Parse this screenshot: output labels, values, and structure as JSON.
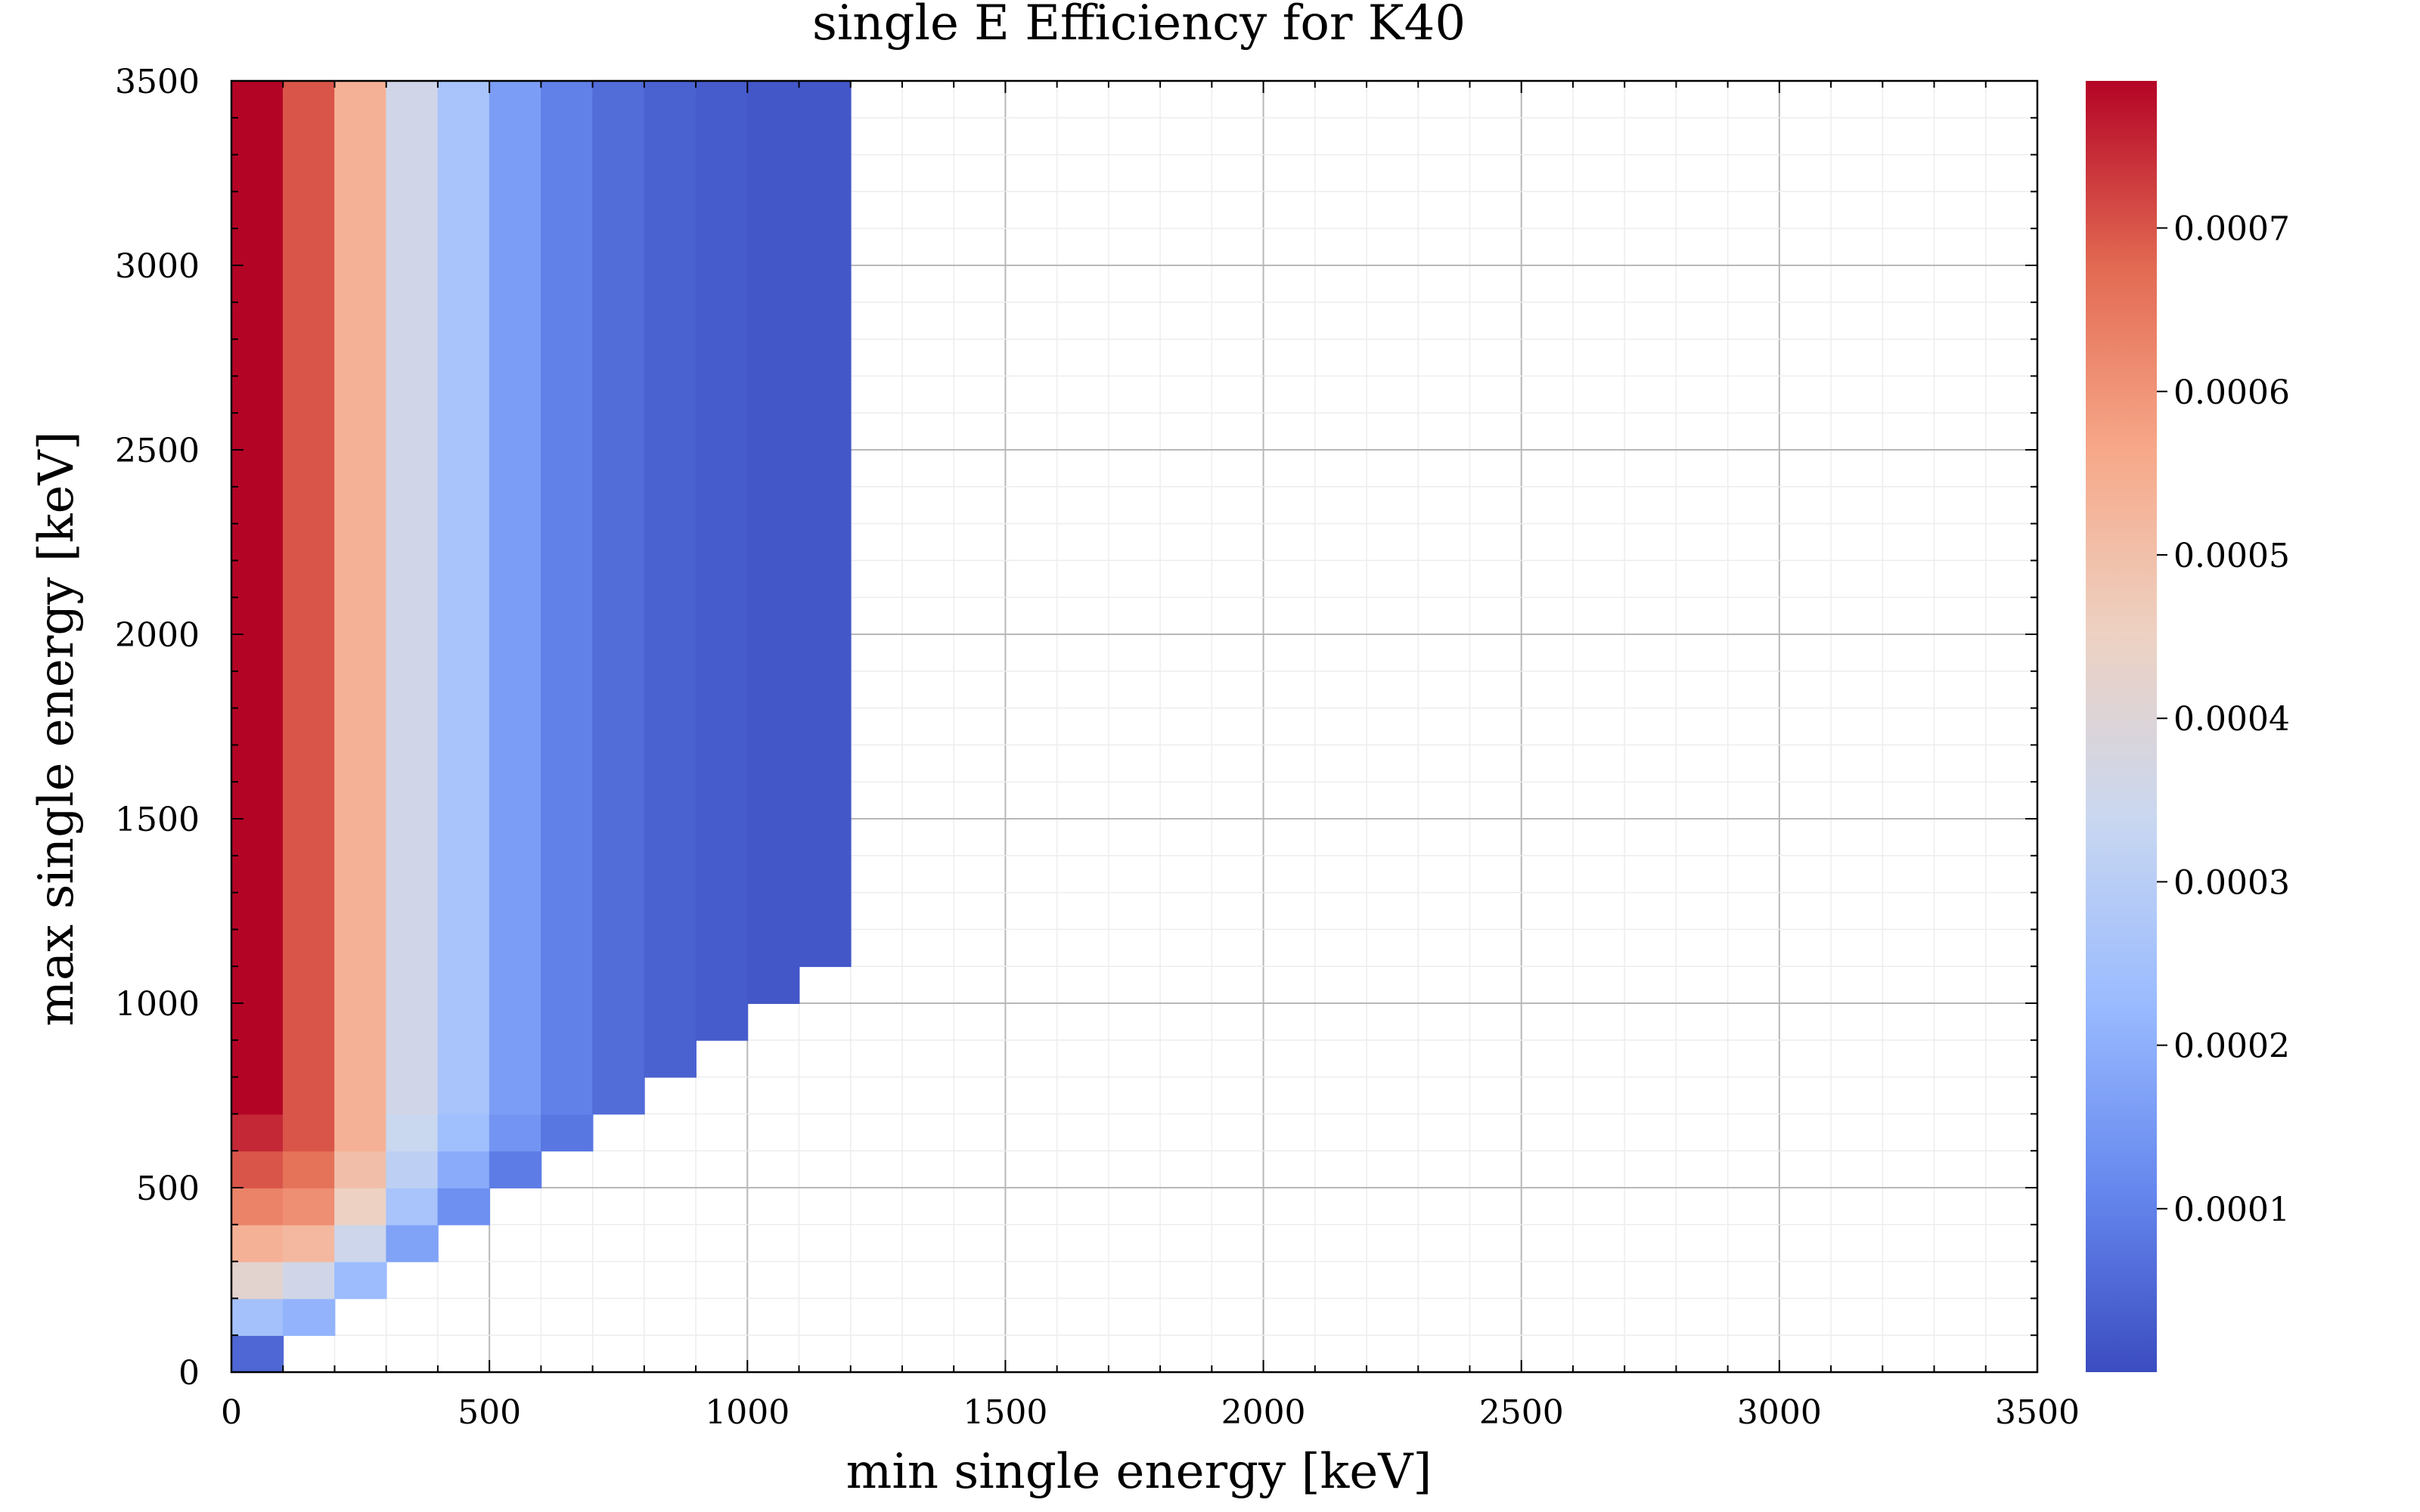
{
  "chart_data": {
    "type": "heatmap",
    "title": "single E Efficiency for K40",
    "xlabel": "min single energy [keV]",
    "ylabel": "max single energy [keV]",
    "xlim": [
      0,
      3500
    ],
    "ylim": [
      0,
      3500
    ],
    "grid": true,
    "x_ticks": [
      "0",
      "500",
      "1000",
      "1500",
      "2000",
      "2500",
      "3000",
      "3500"
    ],
    "y_ticks": [
      "0",
      "500",
      "1000",
      "1500",
      "2000",
      "2500",
      "3000",
      "3500"
    ],
    "colorbar": {
      "min": 0,
      "max": 0.00079,
      "colormap": "coolwarm",
      "colors": [
        "#3b4cc0",
        "#6688ee",
        "#9abbff",
        "#c9d7f0",
        "#edd1c2",
        "#f7a889",
        "#e26952",
        "#b40426"
      ],
      "ticks": [
        "0.0001",
        "0.0002",
        "0.0003",
        "0.0004",
        "0.0005",
        "0.0006",
        "0.0007"
      ]
    },
    "cell_x_width": 100,
    "cells": [
      {
        "xmin": 0,
        "ymin": 0,
        "ymax": 100,
        "value": 5e-05
      },
      {
        "xmin": 0,
        "ymin": 100,
        "ymax": 200,
        "value": 0.00025
      },
      {
        "xmin": 0,
        "ymin": 200,
        "ymax": 300,
        "value": 0.00042
      },
      {
        "xmin": 0,
        "ymin": 300,
        "ymax": 400,
        "value": 0.00054
      },
      {
        "xmin": 0,
        "ymin": 400,
        "ymax": 500,
        "value": 0.00063
      },
      {
        "xmin": 0,
        "ymin": 500,
        "ymax": 600,
        "value": 0.0007
      },
      {
        "xmin": 0,
        "ymin": 600,
        "ymax": 700,
        "value": 0.00075
      },
      {
        "xmin": 0,
        "ymin": 700,
        "ymax": 3500,
        "value": 0.00079
      },
      {
        "xmin": 100,
        "ymin": 100,
        "ymax": 200,
        "value": 0.00021
      },
      {
        "xmin": 100,
        "ymin": 200,
        "ymax": 300,
        "value": 0.00036
      },
      {
        "xmin": 100,
        "ymin": 300,
        "ymax": 400,
        "value": 0.00052
      },
      {
        "xmin": 100,
        "ymin": 400,
        "ymax": 500,
        "value": 0.00061
      },
      {
        "xmin": 100,
        "ymin": 500,
        "ymax": 600,
        "value": 0.00066
      },
      {
        "xmin": 100,
        "ymin": 600,
        "ymax": 3500,
        "value": 0.0007
      },
      {
        "xmin": 200,
        "ymin": 200,
        "ymax": 300,
        "value": 0.00023
      },
      {
        "xmin": 200,
        "ymin": 300,
        "ymax": 400,
        "value": 0.00035
      },
      {
        "xmin": 200,
        "ymin": 400,
        "ymax": 500,
        "value": 0.00045
      },
      {
        "xmin": 200,
        "ymin": 500,
        "ymax": 600,
        "value": 0.0005
      },
      {
        "xmin": 200,
        "ymin": 600,
        "ymax": 3500,
        "value": 0.00054
      },
      {
        "xmin": 300,
        "ymin": 300,
        "ymax": 400,
        "value": 0.00017
      },
      {
        "xmin": 300,
        "ymin": 400,
        "ymax": 500,
        "value": 0.00026
      },
      {
        "xmin": 300,
        "ymin": 500,
        "ymax": 600,
        "value": 0.00031
      },
      {
        "xmin": 300,
        "ymin": 600,
        "ymax": 700,
        "value": 0.00034
      },
      {
        "xmin": 300,
        "ymin": 700,
        "ymax": 3500,
        "value": 0.00036
      },
      {
        "xmin": 400,
        "ymin": 400,
        "ymax": 500,
        "value": 0.00013
      },
      {
        "xmin": 400,
        "ymin": 500,
        "ymax": 600,
        "value": 0.00019
      },
      {
        "xmin": 400,
        "ymin": 600,
        "ymax": 700,
        "value": 0.00024
      },
      {
        "xmin": 400,
        "ymin": 700,
        "ymax": 3500,
        "value": 0.00026
      },
      {
        "xmin": 500,
        "ymin": 500,
        "ymax": 600,
        "value": 9e-05
      },
      {
        "xmin": 500,
        "ymin": 600,
        "ymax": 700,
        "value": 0.00014
      },
      {
        "xmin": 500,
        "ymin": 700,
        "ymax": 3500,
        "value": 0.00016
      },
      {
        "xmin": 600,
        "ymin": 600,
        "ymax": 700,
        "value": 8e-05
      },
      {
        "xmin": 600,
        "ymin": 700,
        "ymax": 3500,
        "value": 0.0001
      },
      {
        "xmin": 700,
        "ymin": 700,
        "ymax": 3500,
        "value": 6e-05
      },
      {
        "xmin": 800,
        "ymin": 800,
        "ymax": 3500,
        "value": 4e-05
      },
      {
        "xmin": 900,
        "ymin": 900,
        "ymax": 3500,
        "value": 3e-05
      },
      {
        "xmin": 1000,
        "ymin": 1000,
        "ymax": 3500,
        "value": 2e-05
      },
      {
        "xmin": 1100,
        "ymin": 1100,
        "ymax": 3500,
        "value": 2e-05
      }
    ]
  }
}
